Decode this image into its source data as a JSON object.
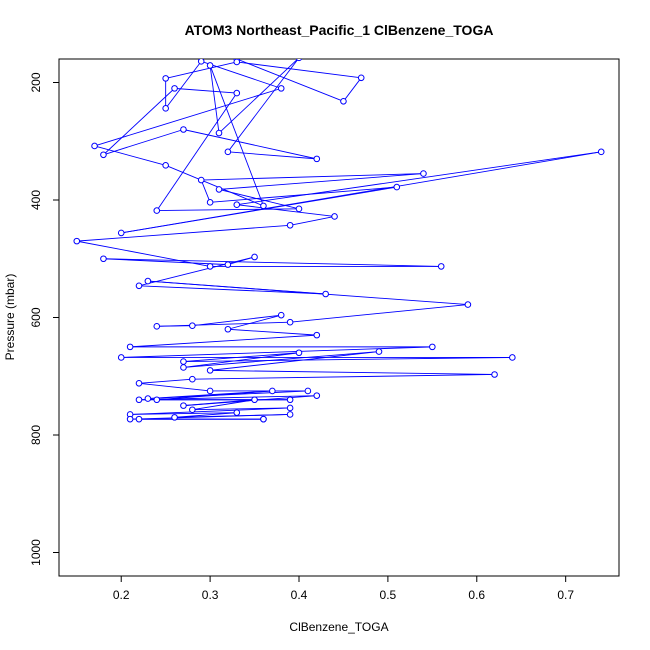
{
  "chart_data": {
    "type": "line",
    "title": "ATOM3 Northeast_Pacific_1 ClBenzene_TOGA",
    "xlabel": "ClBenzene_TOGA",
    "ylabel": "Pressure (mbar)",
    "xlim": [
      0.13,
      0.76
    ],
    "ylim": [
      1040,
      160
    ],
    "y_reversed": true,
    "xticks": [
      0.2,
      0.3,
      0.4,
      0.5,
      0.6,
      0.7
    ],
    "xtick_labels": [
      "0.2",
      "0.3",
      "0.4",
      "0.5",
      "0.6",
      "0.7"
    ],
    "yticks": [
      200,
      400,
      600,
      800,
      1000
    ],
    "ytick_labels": [
      "200",
      "400",
      "600",
      "800",
      "1000"
    ],
    "grid": false,
    "legend": "none",
    "series_color": "#0000ff",
    "marker": "open-circle",
    "series": [
      {
        "points": [
          [
            0.33,
            160
          ],
          [
            0.45,
            232
          ],
          [
            0.47,
            192
          ],
          [
            0.33,
            165
          ],
          [
            0.25,
            193
          ],
          [
            0.25,
            244
          ],
          [
            0.29,
            164
          ],
          [
            0.38,
            210
          ],
          [
            0.17,
            308
          ],
          [
            0.25,
            341
          ],
          [
            0.36,
            410
          ],
          [
            0.3,
            171
          ],
          [
            0.31,
            286
          ],
          [
            0.4,
            158
          ],
          [
            0.32,
            318
          ],
          [
            0.42,
            330
          ],
          [
            0.27,
            280
          ],
          [
            0.18,
            323
          ],
          [
            0.26,
            210
          ],
          [
            0.33,
            218
          ],
          [
            0.24,
            418
          ],
          [
            0.4,
            415
          ],
          [
            0.31,
            382
          ],
          [
            0.54,
            355
          ],
          [
            0.29,
            366
          ],
          [
            0.3,
            404
          ],
          [
            0.51,
            378
          ],
          [
            0.2,
            456
          ],
          [
            0.74,
            318
          ],
          [
            0.33,
            408
          ],
          [
            0.44,
            428
          ],
          [
            0.39,
            443
          ],
          [
            0.15,
            470
          ],
          [
            0.3,
            513
          ],
          [
            0.56,
            513
          ],
          [
            0.18,
            500
          ],
          [
            0.32,
            510
          ],
          [
            0.35,
            497
          ],
          [
            0.22,
            546
          ],
          [
            0.43,
            560
          ],
          [
            0.23,
            538
          ],
          [
            0.59,
            578
          ],
          [
            0.39,
            608
          ],
          [
            0.24,
            615
          ],
          [
            0.28,
            614
          ],
          [
            0.38,
            596
          ],
          [
            0.32,
            620
          ],
          [
            0.42,
            630
          ],
          [
            0.21,
            650
          ],
          [
            0.55,
            650
          ],
          [
            0.2,
            668
          ],
          [
            0.64,
            668
          ],
          [
            0.27,
            675
          ],
          [
            0.4,
            660
          ],
          [
            0.27,
            685
          ],
          [
            0.49,
            658
          ],
          [
            0.3,
            690
          ],
          [
            0.62,
            697
          ],
          [
            0.28,
            705
          ],
          [
            0.22,
            712
          ],
          [
            0.3,
            725
          ],
          [
            0.41,
            725
          ],
          [
            0.23,
            738
          ],
          [
            0.37,
            725
          ],
          [
            0.24,
            740
          ],
          [
            0.39,
            740
          ],
          [
            0.22,
            740
          ],
          [
            0.42,
            733
          ],
          [
            0.27,
            750
          ],
          [
            0.35,
            740
          ],
          [
            0.28,
            757
          ],
          [
            0.39,
            754
          ],
          [
            0.21,
            765
          ],
          [
            0.33,
            762
          ],
          [
            0.26,
            770
          ],
          [
            0.39,
            765
          ],
          [
            0.21,
            773
          ],
          [
            0.36,
            773
          ],
          [
            0.22,
            773
          ],
          [
            0.36,
            773
          ]
        ]
      }
    ]
  }
}
